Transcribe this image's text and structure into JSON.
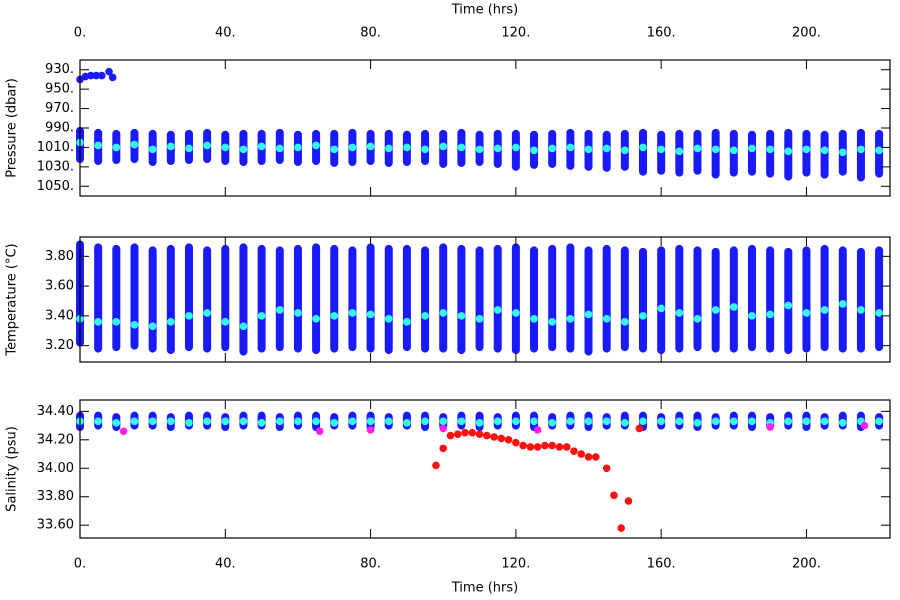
{
  "chart_data": [
    {
      "type": "scatter",
      "xlabel_top": "Time (hrs)",
      "ylabel": "Pressure (dbar)",
      "xlim": [
        0,
        223
      ],
      "ylim": [
        1060,
        920
      ],
      "xticks": [
        {
          "value": 0,
          "label": "0."
        },
        {
          "value": 40,
          "label": "40."
        },
        {
          "value": 80,
          "label": "80."
        },
        {
          "value": 120,
          "label": "120."
        },
        {
          "value": 160,
          "label": "160."
        },
        {
          "value": 200,
          "label": "200."
        }
      ],
      "yticks": [
        {
          "value": 930,
          "label": "930."
        },
        {
          "value": 950,
          "label": "950."
        },
        {
          "value": 970,
          "label": "970."
        },
        {
          "value": 990,
          "label": "990."
        },
        {
          "value": 1010,
          "label": "1010."
        },
        {
          "value": 1030,
          "label": "1030."
        },
        {
          "value": 1050,
          "label": "1050."
        }
      ],
      "series": [
        {
          "color": "#1a1aff",
          "x": [
            0,
            5,
            10,
            15,
            20,
            25,
            30,
            35,
            40,
            45,
            50,
            55,
            60,
            65,
            70,
            75,
            80,
            85,
            90,
            95,
            100,
            105,
            110,
            115,
            120,
            125,
            130,
            135,
            140,
            145,
            150,
            155,
            160,
            165,
            170,
            175,
            180,
            185,
            190,
            195,
            200,
            205,
            210,
            215,
            220
          ],
          "low": [
            993,
            995,
            996,
            995,
            996,
            997,
            996,
            995,
            997,
            996,
            996,
            995,
            997,
            996,
            996,
            995,
            996,
            996,
            997,
            996,
            996,
            995,
            997,
            996,
            996,
            997,
            996,
            995,
            996,
            997,
            996,
            995,
            997,
            996,
            996,
            995,
            996,
            997,
            996,
            995,
            996,
            997,
            996,
            995,
            996
          ],
          "high": [
            1022,
            1024,
            1023,
            1022,
            1025,
            1024,
            1023,
            1022,
            1024,
            1025,
            1024,
            1023,
            1025,
            1024,
            1026,
            1025,
            1024,
            1026,
            1025,
            1024,
            1027,
            1026,
            1025,
            1027,
            1030,
            1028,
            1027,
            1029,
            1030,
            1031,
            1030,
            1035,
            1034,
            1036,
            1034,
            1038,
            1036,
            1035,
            1037,
            1040,
            1036,
            1038,
            1035,
            1041,
            1037
          ]
        },
        {
          "color": "#1a1aff",
          "x": [
            0,
            1.5,
            3,
            4.5,
            6,
            8,
            9
          ],
          "values": [
            940,
            937,
            936,
            936,
            936,
            932,
            938
          ]
        },
        {
          "color": "#33ffee",
          "x": [
            0,
            5,
            10,
            15,
            20,
            25,
            30,
            35,
            40,
            45,
            50,
            55,
            60,
            65,
            70,
            75,
            80,
            85,
            90,
            95,
            100,
            105,
            110,
            115,
            120,
            125,
            130,
            135,
            140,
            145,
            150,
            155,
            160,
            165,
            170,
            175,
            180,
            185,
            190,
            195,
            200,
            205,
            210,
            215,
            220
          ],
          "values": [
            1005,
            1008,
            1010,
            1007,
            1012,
            1009,
            1011,
            1008,
            1010,
            1012,
            1009,
            1011,
            1010,
            1008,
            1012,
            1010,
            1009,
            1011,
            1010,
            1012,
            1009,
            1010,
            1012,
            1011,
            1010,
            1013,
            1011,
            1010,
            1012,
            1011,
            1013,
            1010,
            1012,
            1014,
            1011,
            1012,
            1013,
            1011,
            1012,
            1014,
            1012,
            1013,
            1015,
            1012,
            1013
          ]
        }
      ]
    },
    {
      "type": "scatter",
      "ylabel": "Temperature (°C)",
      "xlim": [
        0,
        223
      ],
      "ylim": [
        3.09,
        3.93
      ],
      "xticks": [
        0,
        40,
        80,
        120,
        160,
        200
      ],
      "yticks": [
        {
          "value": 3.2,
          "label": "3.20"
        },
        {
          "value": 3.4,
          "label": "3.40"
        },
        {
          "value": 3.6,
          "label": "3.60"
        },
        {
          "value": 3.8,
          "label": "3.80"
        }
      ],
      "series": [
        {
          "color": "#1a1aff",
          "x": [
            0,
            5,
            10,
            15,
            20,
            25,
            30,
            35,
            40,
            45,
            50,
            55,
            60,
            65,
            70,
            75,
            80,
            85,
            90,
            95,
            100,
            105,
            110,
            115,
            120,
            125,
            130,
            135,
            140,
            145,
            150,
            155,
            160,
            165,
            170,
            175,
            180,
            185,
            190,
            195,
            200,
            205,
            210,
            215,
            220
          ],
          "low": [
            3.22,
            3.18,
            3.19,
            3.2,
            3.18,
            3.17,
            3.19,
            3.18,
            3.19,
            3.16,
            3.18,
            3.19,
            3.18,
            3.17,
            3.18,
            3.19,
            3.18,
            3.17,
            3.19,
            3.18,
            3.18,
            3.17,
            3.19,
            3.18,
            3.17,
            3.18,
            3.19,
            3.18,
            3.16,
            3.18,
            3.19,
            3.18,
            3.17,
            3.18,
            3.19,
            3.18,
            3.18,
            3.19,
            3.18,
            3.17,
            3.18,
            3.19,
            3.18,
            3.18,
            3.19
          ],
          "high": [
            3.88,
            3.86,
            3.85,
            3.86,
            3.84,
            3.85,
            3.86,
            3.84,
            3.85,
            3.86,
            3.85,
            3.84,
            3.85,
            3.86,
            3.85,
            3.84,
            3.86,
            3.85,
            3.85,
            3.84,
            3.86,
            3.85,
            3.84,
            3.85,
            3.86,
            3.84,
            3.85,
            3.86,
            3.84,
            3.85,
            3.84,
            3.83,
            3.84,
            3.85,
            3.84,
            3.83,
            3.84,
            3.85,
            3.84,
            3.83,
            3.84,
            3.85,
            3.84,
            3.83,
            3.84
          ]
        },
        {
          "color": "#33ffee",
          "x": [
            0,
            5,
            10,
            15,
            20,
            25,
            30,
            35,
            40,
            45,
            50,
            55,
            60,
            65,
            70,
            75,
            80,
            85,
            90,
            95,
            100,
            105,
            110,
            115,
            120,
            125,
            130,
            135,
            140,
            145,
            150,
            155,
            160,
            165,
            170,
            175,
            180,
            185,
            190,
            195,
            200,
            205,
            210,
            215,
            220
          ],
          "values": [
            3.38,
            3.36,
            3.36,
            3.34,
            3.33,
            3.36,
            3.4,
            3.42,
            3.36,
            3.33,
            3.4,
            3.44,
            3.42,
            3.38,
            3.4,
            3.42,
            3.41,
            3.38,
            3.36,
            3.4,
            3.42,
            3.4,
            3.38,
            3.44,
            3.42,
            3.38,
            3.36,
            3.38,
            3.41,
            3.38,
            3.36,
            3.4,
            3.45,
            3.42,
            3.38,
            3.44,
            3.46,
            3.4,
            3.41,
            3.47,
            3.42,
            3.44,
            3.48,
            3.44,
            3.42
          ]
        }
      ]
    },
    {
      "type": "scatter",
      "xlabel": "Time (hrs)",
      "ylabel": "Salinity (psu)",
      "xlim": [
        0,
        223
      ],
      "ylim": [
        33.51,
        34.48
      ],
      "xticks": [
        {
          "value": 0,
          "label": "0."
        },
        {
          "value": 40,
          "label": "40."
        },
        {
          "value": 80,
          "label": "80."
        },
        {
          "value": 120,
          "label": "120."
        },
        {
          "value": 160,
          "label": "160."
        },
        {
          "value": 200,
          "label": "200."
        }
      ],
      "yticks": [
        {
          "value": 33.6,
          "label": "33.60"
        },
        {
          "value": 33.8,
          "label": "33.80"
        },
        {
          "value": 34,
          "label": "34.00"
        },
        {
          "value": 34.2,
          "label": "34.20"
        },
        {
          "value": 34.4,
          "label": "34.40"
        }
      ],
      "series": [
        {
          "color": "#1a1aff",
          "x": [
            0,
            5,
            10,
            15,
            20,
            25,
            30,
            35,
            40,
            45,
            50,
            55,
            60,
            65,
            70,
            75,
            80,
            85,
            90,
            95,
            100,
            105,
            110,
            115,
            120,
            125,
            130,
            135,
            140,
            145,
            150,
            155,
            160,
            165,
            170,
            175,
            180,
            185,
            190,
            195,
            200,
            205,
            210,
            215,
            220
          ],
          "low": [
            34.29,
            34.3,
            34.29,
            34.3,
            34.3,
            34.29,
            34.3,
            34.3,
            34.29,
            34.3,
            34.3,
            34.29,
            34.3,
            34.29,
            34.3,
            34.3,
            34.29,
            34.3,
            34.3,
            34.29,
            34.3,
            34.3,
            34.29,
            34.3,
            34.3,
            34.29,
            34.3,
            34.3,
            34.29,
            34.3,
            34.3,
            34.29,
            34.3,
            34.3,
            34.29,
            34.3,
            34.3,
            34.29,
            34.3,
            34.3,
            34.29,
            34.3,
            34.3,
            34.29,
            34.3
          ],
          "high": [
            34.37,
            34.37,
            34.36,
            34.37,
            34.37,
            34.36,
            34.37,
            34.37,
            34.36,
            34.37,
            34.37,
            34.36,
            34.37,
            34.37,
            34.36,
            34.37,
            34.37,
            34.36,
            34.37,
            34.37,
            34.36,
            34.37,
            34.37,
            34.36,
            34.37,
            34.37,
            34.36,
            34.37,
            34.37,
            34.36,
            34.37,
            34.37,
            34.36,
            34.37,
            34.37,
            34.36,
            34.37,
            34.37,
            34.36,
            34.37,
            34.37,
            34.36,
            34.37,
            34.37,
            34.36
          ]
        },
        {
          "color": "#33ffee",
          "x": [
            0,
            5,
            10,
            15,
            20,
            25,
            30,
            35,
            40,
            45,
            50,
            55,
            60,
            65,
            70,
            75,
            80,
            85,
            90,
            95,
            100,
            105,
            110,
            115,
            120,
            125,
            130,
            135,
            140,
            145,
            150,
            155,
            160,
            165,
            170,
            175,
            180,
            185,
            190,
            195,
            200,
            205,
            210,
            215,
            220
          ],
          "values": [
            34.33,
            34.33,
            34.32,
            34.33,
            34.33,
            34.33,
            34.32,
            34.33,
            34.33,
            34.33,
            34.32,
            34.33,
            34.33,
            34.33,
            34.32,
            34.33,
            34.33,
            34.33,
            34.32,
            34.33,
            34.33,
            34.33,
            34.32,
            34.33,
            34.33,
            34.33,
            34.32,
            34.33,
            34.33,
            34.33,
            34.32,
            34.33,
            34.33,
            34.33,
            34.32,
            34.33,
            34.33,
            34.33,
            34.32,
            34.33,
            34.33,
            34.33,
            34.32,
            34.33,
            34.33
          ]
        },
        {
          "color": "#ff22ee",
          "x": [
            12,
            66,
            80,
            100,
            126,
            190,
            216
          ],
          "values": [
            34.26,
            34.26,
            34.27,
            34.28,
            34.27,
            34.29,
            34.3
          ]
        },
        {
          "color": "#ff1111",
          "x": [
            98,
            100,
            102,
            104,
            106,
            108,
            110,
            112,
            114,
            116,
            118,
            120,
            122,
            124,
            126,
            128,
            130,
            132,
            134,
            136,
            138,
            140,
            142,
            145,
            147,
            149,
            151,
            154
          ],
          "values": [
            34.02,
            34.14,
            34.23,
            34.24,
            34.25,
            34.25,
            34.24,
            34.23,
            34.22,
            34.21,
            34.2,
            34.18,
            34.16,
            34.15,
            34.15,
            34.16,
            34.16,
            34.15,
            34.15,
            34.12,
            34.1,
            34.08,
            34.08,
            34.0,
            33.81,
            33.58,
            33.77,
            34.28
          ]
        }
      ]
    }
  ]
}
